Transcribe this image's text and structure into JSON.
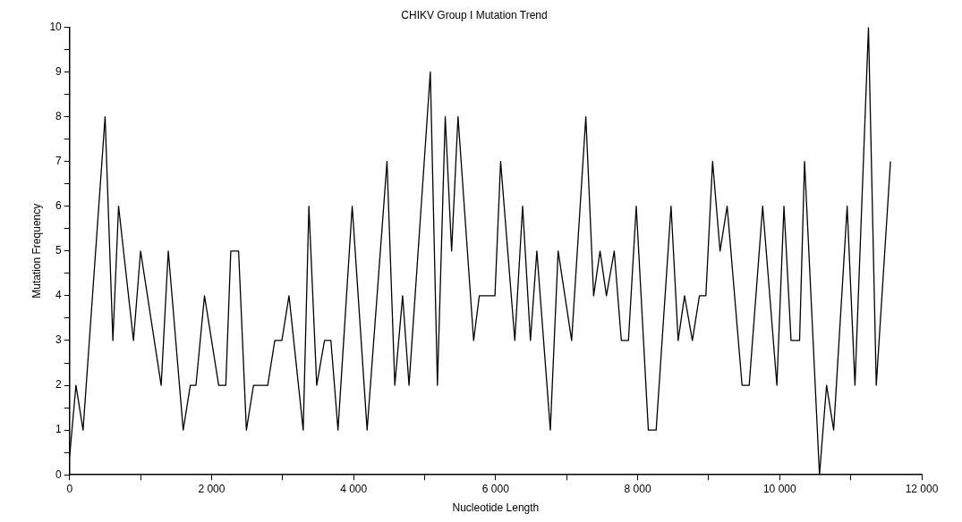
{
  "chart_data": {
    "type": "line",
    "title": "CHIKV Group I Mutation Trend",
    "xlabel": "Nucleotide Length",
    "ylabel": "Mutation Frequency",
    "x": [
      0,
      90,
      190,
      500,
      610,
      690,
      900,
      1000,
      1290,
      1390,
      1600,
      1700,
      1780,
      1900,
      2100,
      2200,
      2270,
      2380,
      2490,
      2590,
      2790,
      2890,
      2990,
      3090,
      3290,
      3370,
      3480,
      3590,
      3680,
      3780,
      3980,
      4190,
      4470,
      4580,
      4690,
      4780,
      5080,
      5180,
      5290,
      5380,
      5470,
      5690,
      5770,
      5990,
      6070,
      6270,
      6380,
      6490,
      6580,
      6770,
      6880,
      7070,
      7270,
      7380,
      7470,
      7560,
      7670,
      7770,
      7870,
      7980,
      8150,
      8260,
      8470,
      8570,
      8660,
      8770,
      8870,
      8960,
      9055,
      9160,
      9260,
      9470,
      9570,
      9760,
      9960,
      10060,
      10160,
      10280,
      10350,
      10560,
      10660,
      10760,
      10950,
      11060,
      11250,
      11360,
      11560
    ],
    "series": [
      {
        "color": "#000000",
        "values": [
          0.4,
          2,
          1,
          8,
          3,
          6,
          3,
          5,
          2,
          5,
          1,
          2,
          2,
          4,
          2,
          2,
          5,
          5,
          1,
          2,
          2,
          3,
          3,
          4,
          1,
          6,
          2,
          3,
          3,
          1,
          6,
          1,
          7,
          2,
          4,
          2,
          9,
          2,
          8,
          5,
          8,
          3,
          4,
          4,
          7,
          3,
          6,
          3,
          5,
          1,
          5,
          3,
          8,
          4,
          5,
          4,
          5,
          3,
          3,
          6,
          1,
          1,
          6,
          3,
          4,
          3,
          4,
          4,
          7,
          5,
          6,
          2,
          2,
          6,
          2,
          6,
          3,
          3,
          7,
          0,
          2,
          1,
          6,
          2,
          10,
          2,
          7
        ]
      }
    ],
    "xlim": [
      0,
      12000
    ],
    "ylim": [
      0,
      10
    ],
    "xticks": [
      0,
      {
        "value": 1000,
        "label": null
      },
      {
        "value": 2000,
        "label": "2 000"
      },
      {
        "value": 3000,
        "label": null
      },
      {
        "value": 4000,
        "label": "4 000"
      },
      {
        "value": 5000,
        "label": null
      },
      {
        "value": 6000,
        "label": "6 000"
      },
      {
        "value": 7000,
        "label": null
      },
      {
        "value": 8000,
        "label": "8 000"
      },
      {
        "value": 9000,
        "label": null
      },
      {
        "value": 10000,
        "label": "10 000"
      },
      {
        "value": 11000,
        "label": null
      },
      {
        "value": 12000,
        "label": "12 000"
      }
    ],
    "yticks": [
      0,
      {
        "value": 0.5,
        "label": null
      },
      1,
      {
        "value": 1.5,
        "label": null
      },
      2,
      {
        "value": 2.5,
        "label": null
      },
      3,
      {
        "value": 3.5,
        "label": null
      },
      4,
      {
        "value": 4.5,
        "label": null
      },
      5,
      {
        "value": 5.5,
        "label": null
      },
      6,
      {
        "value": 6.5,
        "label": null
      },
      7,
      {
        "value": 7.5,
        "label": null
      },
      8,
      {
        "value": 8.5,
        "label": null
      },
      9,
      {
        "value": 9.5,
        "label": null
      },
      10
    ],
    "grid": false,
    "legend": false,
    "marker": "none",
    "line_style": "solid"
  }
}
